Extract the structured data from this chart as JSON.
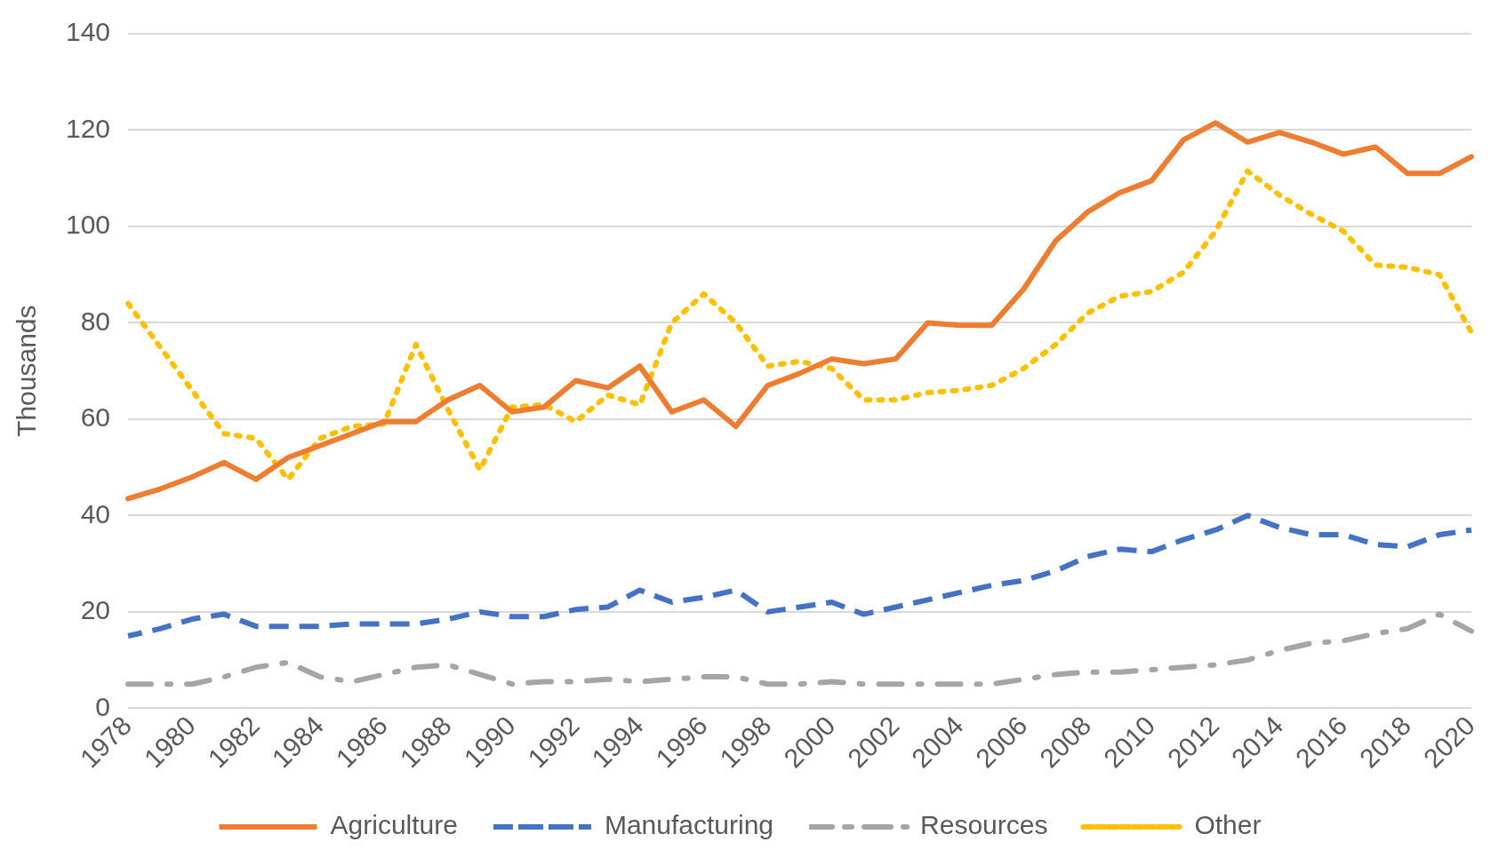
{
  "chart_data": {
    "type": "line",
    "ylabel": "Thousands",
    "categories": [
      "1978",
      null,
      "1980",
      null,
      "1982",
      null,
      "1984",
      null,
      "1986",
      null,
      "1988",
      null,
      "1990",
      null,
      "1992",
      null,
      "1994",
      null,
      "1996",
      null,
      "1998",
      null,
      "2000",
      null,
      "2002",
      null,
      "2004",
      null,
      "2006",
      null,
      "2008",
      null,
      "2010",
      null,
      "2012",
      null,
      "2014",
      null,
      "2016",
      null,
      "2018",
      null,
      "2020"
    ],
    "ylim": [
      0,
      140
    ],
    "yticks": [
      0,
      20,
      40,
      60,
      80,
      100,
      120,
      140
    ],
    "grid": "y",
    "legend": "bottom",
    "marker": "none",
    "series": [
      {
        "name": "Agriculture",
        "color": "#ed7d31",
        "line_style": "solid",
        "values": [
          43.5,
          45.5,
          48,
          51,
          47.5,
          52,
          54.5,
          57,
          59.5,
          59.5,
          64,
          67,
          61.5,
          62.5,
          68,
          66.5,
          71,
          61.5,
          64,
          58.5,
          67,
          69.5,
          72.5,
          71.5,
          72.5,
          80,
          79.5,
          79.5,
          87,
          97,
          103,
          107,
          109.5,
          118,
          121.5,
          117.5,
          119.5,
          117.5,
          115,
          116.5,
          111,
          111,
          114.5
        ]
      },
      {
        "name": "Manufacturing",
        "color": "#4472c4",
        "line_style": "dashed",
        "values": [
          15,
          16.5,
          18.5,
          19.5,
          17,
          17,
          17,
          17.5,
          17.5,
          17.5,
          18.5,
          20,
          19,
          19,
          20.5,
          21,
          24.5,
          22,
          23,
          24.5,
          20,
          21,
          22,
          19.5,
          21,
          22.5,
          24,
          25.5,
          26.5,
          28.5,
          31.5,
          33,
          32.5,
          35,
          37,
          40,
          37.5,
          36,
          36,
          34,
          33.5,
          36,
          37
        ]
      },
      {
        "name": "Resources",
        "color": "#a5a5a5",
        "line_style": "dashdot",
        "values": [
          5,
          5,
          5,
          6.5,
          8.5,
          9.5,
          6.5,
          5.5,
          7,
          8.5,
          9,
          7,
          5,
          5.5,
          5.5,
          6,
          5.5,
          6,
          6.5,
          6.5,
          5,
          5,
          5.5,
          5,
          5,
          5,
          5,
          5,
          6,
          7,
          7.5,
          7.5,
          8,
          8.5,
          9,
          10,
          12,
          13.5,
          14,
          15.5,
          16.5,
          19.5,
          16
        ]
      },
      {
        "name": "Other",
        "color": "#ffc000",
        "line_style": "dotted",
        "values": [
          84,
          75,
          66,
          57,
          56,
          47.5,
          56,
          58.5,
          59,
          75.5,
          62,
          49.5,
          62.5,
          63,
          59.5,
          65,
          63,
          80,
          86,
          80,
          71,
          72,
          70.5,
          64,
          64,
          65.5,
          66,
          67,
          70.5,
          75.5,
          82,
          85.5,
          86.5,
          90.5,
          99,
          111.5,
          106.5,
          102.5,
          99,
          92,
          91.5,
          90,
          78
        ]
      }
    ]
  }
}
